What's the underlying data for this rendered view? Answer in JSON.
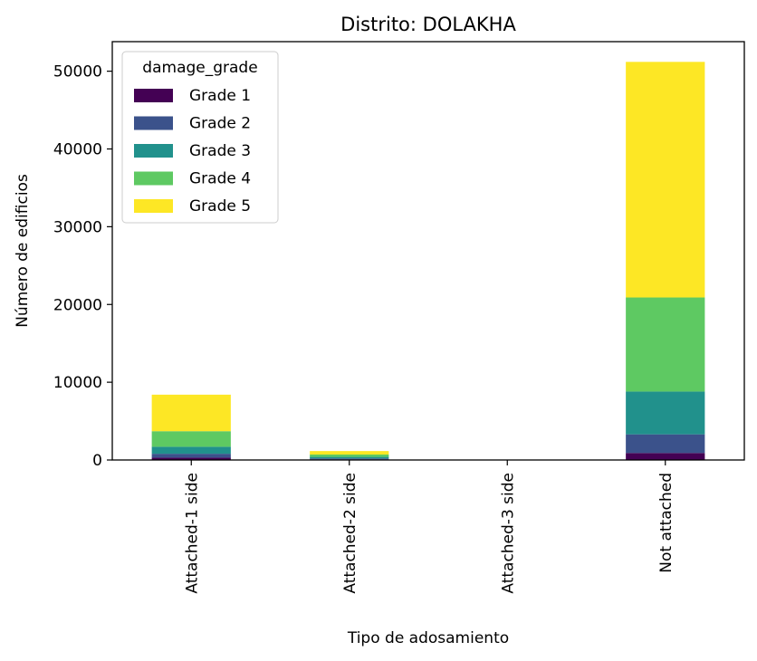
{
  "chart_data": {
    "type": "bar",
    "stacked": true,
    "title": "Distrito: DOLAKHA",
    "xlabel": "Tipo de adosamiento",
    "ylabel": "Número de edificios",
    "ylim": [
      0,
      53800
    ],
    "yticks": [
      0,
      10000,
      20000,
      30000,
      40000,
      50000
    ],
    "grid": false,
    "legend": {
      "title": "damage_grade",
      "placement": "top-left"
    },
    "categories": [
      "Attached-1 side",
      "Attached-2 side",
      "Attached-3 side",
      "Not attached"
    ],
    "series": [
      {
        "name": "Grade 1",
        "color": "#440154",
        "values": [
          300,
          80,
          0,
          900
        ]
      },
      {
        "name": "Grade 2",
        "color": "#3b528b",
        "values": [
          500,
          120,
          0,
          2400
        ]
      },
      {
        "name": "Grade 3",
        "color": "#21918c",
        "values": [
          900,
          200,
          0,
          5500
        ]
      },
      {
        "name": "Grade 4",
        "color": "#5ec962",
        "values": [
          2000,
          300,
          0,
          12100
        ]
      },
      {
        "name": "Grade 5",
        "color": "#fde725",
        "values": [
          4700,
          450,
          0,
          30300
        ]
      }
    ]
  }
}
